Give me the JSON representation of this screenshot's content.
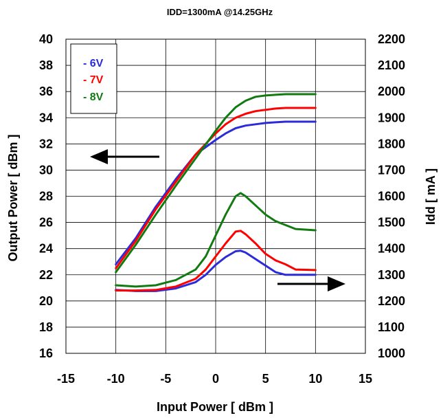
{
  "chart_data": {
    "type": "line",
    "title": "IDD=1300mA @14.25GHz",
    "xlabel": "Input Power [ dBm ]",
    "ylabel_left": "Output Power [ dBm ]",
    "ylabel_right": "Idd [ mA ]",
    "xlim": [
      -15,
      15
    ],
    "ylim_left": [
      16,
      40
    ],
    "ylim_right": [
      1000,
      2200
    ],
    "x_ticks": [
      "-15",
      "-10",
      "-5",
      "0",
      "5",
      "10",
      "15"
    ],
    "y_left_ticks": [
      "16",
      "18",
      "20",
      "22",
      "24",
      "26",
      "28",
      "30",
      "32",
      "34",
      "36",
      "38",
      "40"
    ],
    "y_right_ticks": [
      "1000",
      "1100",
      "1200",
      "1300",
      "1400",
      "1500",
      "1600",
      "1700",
      "1800",
      "1900",
      "2000",
      "2100",
      "2200"
    ],
    "grid": true,
    "legend_position": "top-left",
    "legend": [
      {
        "label": "- 6V",
        "color": "#2b2bd9"
      },
      {
        "label": "- 7V",
        "color": "#ff0000"
      },
      {
        "label": "- 8V",
        "color": "#117a11"
      }
    ],
    "series": [
      {
        "name": "- 6V",
        "axis": "left",
        "color": "#2b2bd9",
        "points": [
          [
            -10,
            22.8
          ],
          [
            -8,
            24.8
          ],
          [
            -6,
            27.2
          ],
          [
            -4,
            29.3
          ],
          [
            -2,
            31.2
          ],
          [
            0,
            32.3
          ],
          [
            1,
            32.8
          ],
          [
            2,
            33.2
          ],
          [
            3,
            33.4
          ],
          [
            4,
            33.5
          ],
          [
            5,
            33.6
          ],
          [
            6,
            33.65
          ],
          [
            7,
            33.7
          ],
          [
            10,
            33.7
          ]
        ]
      },
      {
        "name": "- 7V",
        "axis": "left",
        "color": "#ff0000",
        "points": [
          [
            -10,
            22.5
          ],
          [
            -8,
            24.6
          ],
          [
            -6,
            27.0
          ],
          [
            -4,
            29.1
          ],
          [
            -2,
            31.2
          ],
          [
            0,
            32.8
          ],
          [
            1,
            33.5
          ],
          [
            2,
            34.0
          ],
          [
            3,
            34.3
          ],
          [
            4,
            34.5
          ],
          [
            5,
            34.6
          ],
          [
            6,
            34.7
          ],
          [
            7,
            34.75
          ],
          [
            10,
            34.75
          ]
        ]
      },
      {
        "name": "- 8V",
        "axis": "left",
        "color": "#117a11",
        "points": [
          [
            -10,
            22.2
          ],
          [
            -8,
            24.3
          ],
          [
            -6,
            26.6
          ],
          [
            -4,
            28.8
          ],
          [
            -2,
            30.9
          ],
          [
            0,
            33.0
          ],
          [
            1,
            34.0
          ],
          [
            2,
            34.8
          ],
          [
            3,
            35.3
          ],
          [
            4,
            35.6
          ],
          [
            5,
            35.7
          ],
          [
            6,
            35.75
          ],
          [
            7,
            35.8
          ],
          [
            10,
            35.8
          ]
        ]
      },
      {
        "name": "- 6V",
        "axis": "right",
        "color": "#2b2bd9",
        "points": [
          [
            -10,
            1242
          ],
          [
            -8,
            1238
          ],
          [
            -6,
            1238
          ],
          [
            -4,
            1248
          ],
          [
            -2,
            1272
          ],
          [
            -1,
            1300
          ],
          [
            0,
            1338
          ],
          [
            1,
            1368
          ],
          [
            2,
            1390
          ],
          [
            2.5,
            1392
          ],
          [
            3,
            1385
          ],
          [
            4,
            1360
          ],
          [
            5,
            1335
          ],
          [
            6,
            1310
          ],
          [
            7,
            1300
          ],
          [
            10,
            1300
          ]
        ]
      },
      {
        "name": "- 7V",
        "axis": "right",
        "color": "#ff0000",
        "points": [
          [
            -10,
            1240
          ],
          [
            -8,
            1240
          ],
          [
            -6,
            1242
          ],
          [
            -4,
            1255
          ],
          [
            -2,
            1285
          ],
          [
            -1,
            1320
          ],
          [
            0,
            1370
          ],
          [
            1,
            1420
          ],
          [
            2,
            1465
          ],
          [
            2.5,
            1468
          ],
          [
            3,
            1455
          ],
          [
            4,
            1420
          ],
          [
            5,
            1380
          ],
          [
            6,
            1355
          ],
          [
            7,
            1340
          ],
          [
            8,
            1320
          ],
          [
            10,
            1318
          ]
        ]
      },
      {
        "name": "- 8V",
        "axis": "right",
        "color": "#117a11",
        "points": [
          [
            -10,
            1260
          ],
          [
            -8,
            1255
          ],
          [
            -6,
            1260
          ],
          [
            -4,
            1280
          ],
          [
            -2,
            1320
          ],
          [
            -1,
            1370
          ],
          [
            0,
            1450
          ],
          [
            1,
            1530
          ],
          [
            2,
            1600
          ],
          [
            2.5,
            1612
          ],
          [
            3,
            1600
          ],
          [
            4,
            1565
          ],
          [
            5,
            1530
          ],
          [
            6,
            1505
          ],
          [
            7,
            1490
          ],
          [
            8,
            1475
          ],
          [
            10,
            1470
          ]
        ]
      }
    ]
  }
}
